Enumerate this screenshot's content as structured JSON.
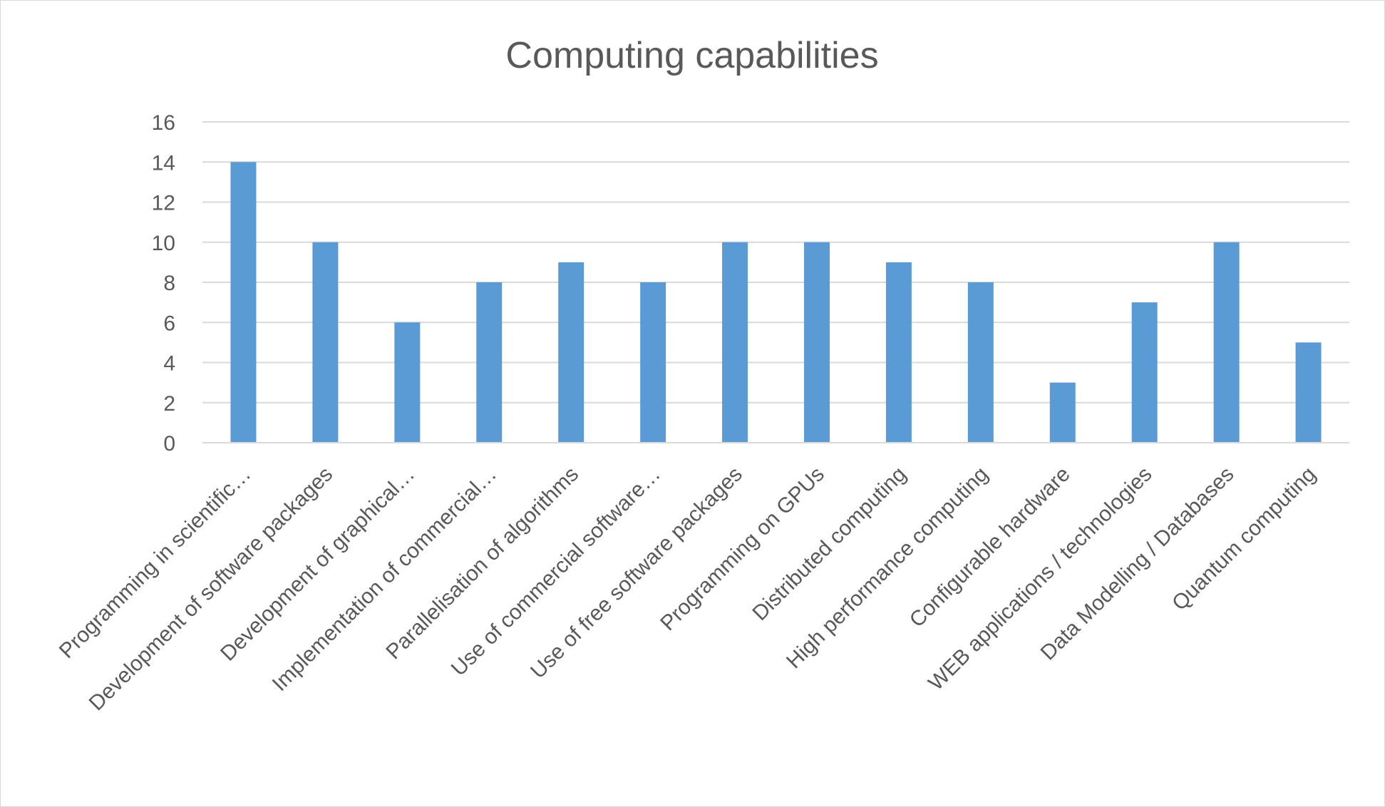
{
  "chart_data": {
    "type": "bar",
    "title": "Computing capabilities",
    "xlabel": "",
    "ylabel": "",
    "ylim": [
      0,
      16
    ],
    "yticks": [
      "0",
      "2",
      "4",
      "6",
      "8",
      "10",
      "12",
      "14",
      "16"
    ],
    "grid": true,
    "legend": "none",
    "bar_color": "#5b9bd5",
    "categories": [
      "Programming in scientific…",
      "Development of software packages",
      "Development of graphical…",
      "Implementation of commercial…",
      "Parallelisation of algorithms",
      "Use of commercial software…",
      "Use of free software packages",
      "Programming on GPUs",
      "Distributed computing",
      "High performance computing",
      "Configurable hardware",
      "WEB applications / technologies",
      "Data Modelling / Databases",
      "Quantum computing"
    ],
    "values": [
      14,
      10,
      6,
      8,
      9,
      8,
      10,
      10,
      9,
      8,
      3,
      7,
      10,
      5
    ]
  }
}
